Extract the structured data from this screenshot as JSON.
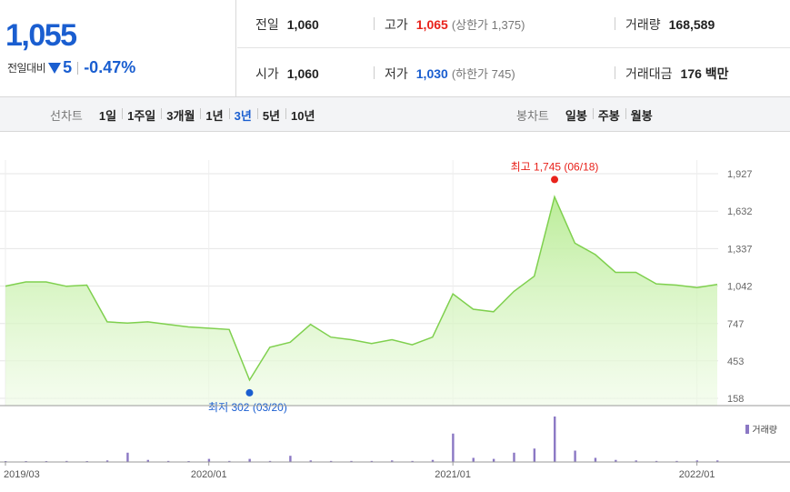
{
  "quote": {
    "price": "1,055",
    "change_label": "전일대비",
    "change_abs": "5",
    "change_pct": "-0.47%",
    "direction": "down",
    "stats": {
      "prev_close": {
        "label": "전일",
        "value": "1,060"
      },
      "high": {
        "label": "고가",
        "value": "1,065",
        "sub": "(상한가 1,375)"
      },
      "volume": {
        "label": "거래량",
        "value": "168,589"
      },
      "open": {
        "label": "시가",
        "value": "1,060"
      },
      "low": {
        "label": "저가",
        "value": "1,030",
        "sub": "(하한가 745)"
      },
      "amount": {
        "label": "거래대금",
        "value": "176 백만"
      }
    }
  },
  "toolbar": {
    "line_chart_title": "선차트",
    "line_periods": [
      "1일",
      "1주일",
      "3개월",
      "1년",
      "3년",
      "5년",
      "10년"
    ],
    "active_period": "3년",
    "candle_title": "봉차트",
    "candle_periods": [
      "일봉",
      "주봉",
      "월봉"
    ]
  },
  "colors": {
    "up": "#e8221b",
    "down": "#1a5ed0",
    "line": "#7fd04e",
    "volume": "#8b78c4"
  },
  "chart_data": {
    "type": "area",
    "x_ticks": [
      "2019/03",
      "2020/01",
      "2021/01",
      "2022/01"
    ],
    "y_ticks": [
      158,
      453,
      747,
      1042,
      1337,
      1632,
      1927
    ],
    "ylim": [
      158,
      1927
    ],
    "grid": true,
    "annotations": {
      "high": {
        "text": "최고 1,745 (06/18)",
        "value": 1745,
        "date": "2021/06/18"
      },
      "low": {
        "text": "최저 302 (03/20)",
        "value": 302,
        "date": "2020/03/20"
      }
    },
    "x": [
      "2019/03",
      "2019/04",
      "2019/05",
      "2019/06",
      "2019/07",
      "2019/08",
      "2019/09",
      "2019/10",
      "2019/11",
      "2019/12",
      "2020/01",
      "2020/02",
      "2020/03",
      "2020/04",
      "2020/05",
      "2020/06",
      "2020/07",
      "2020/08",
      "2020/09",
      "2020/10",
      "2020/11",
      "2020/12",
      "2021/01",
      "2021/02",
      "2021/03",
      "2021/04",
      "2021/05",
      "2021/06",
      "2021/07",
      "2021/08",
      "2021/09",
      "2021/10",
      "2021/11",
      "2021/12",
      "2022/01",
      "2022/02"
    ],
    "series": [
      {
        "values": [
          1042,
          1075,
          1075,
          1040,
          1050,
          760,
          750,
          760,
          740,
          720,
          710,
          700,
          302,
          560,
          600,
          740,
          640,
          620,
          590,
          620,
          580,
          640,
          980,
          860,
          840,
          1000,
          1120,
          1745,
          1380,
          1290,
          1150,
          1150,
          1060,
          1050,
          1030,
          1055
        ]
      }
    ],
    "volume": {
      "legend": "거래량",
      "values": [
        1,
        1,
        1,
        2,
        1,
        3,
        18,
        4,
        2,
        1,
        6,
        2,
        6,
        2,
        12,
        3,
        2,
        2,
        2,
        3,
        2,
        4,
        55,
        8,
        6,
        18,
        26,
        88,
        22,
        8,
        4,
        3,
        2,
        2,
        3,
        3
      ]
    }
  }
}
